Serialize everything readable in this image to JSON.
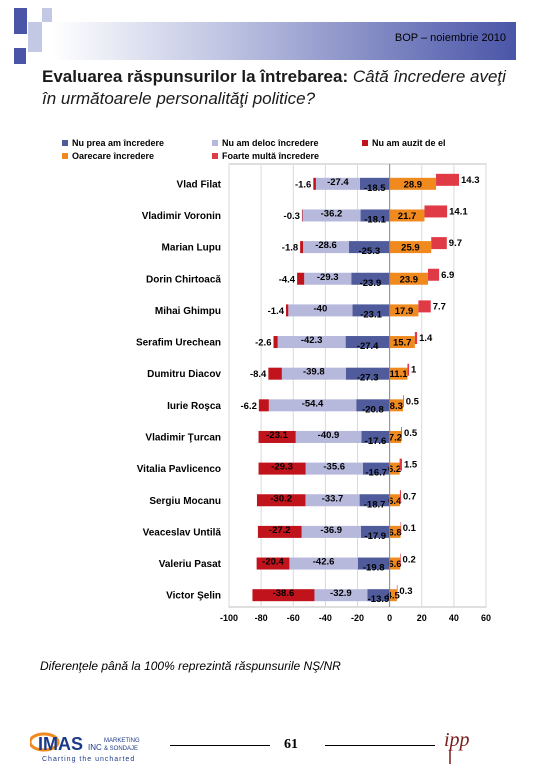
{
  "header": {
    "text": "BOP – noiembrie 2010"
  },
  "title": {
    "lead": "Evaluarea răspunsurilor la întrebarea:",
    "question": " Câtă încredere aveţi în următoarele personalităţi politice?"
  },
  "note": "Diferenţele până la 100% reprezintă răspunsurile NŞ/NR",
  "page_number": "61",
  "logos": {
    "imas_text": "IMAS",
    "imas_tagline": "Charting the uncharted",
    "imas_sub1": "INC",
    "imas_sub2": "MARKETING",
    "imas_sub3": "& SONDAJE",
    "ipp_text": "ipp"
  },
  "colors": {
    "nu_prea": "#4f5b9a",
    "nu_deloc": "#b7b9dc",
    "nu_auzit": "#c0131b",
    "oarecare": "#f08a1e",
    "foarte": "#e03a47",
    "header_dark": "#4a55a8"
  },
  "chart_data": {
    "type": "bar",
    "orientation": "horizontal-diverging",
    "categories": [
      "Vlad Filat",
      "Vladimir Voronin",
      "Marian Lupu",
      "Dorin Chirtoacă",
      "Mihai Ghimpu",
      "Serafim Urechean",
      "Dumitru Diacov",
      "Iurie Roşca",
      "Vladimir Ţurcan",
      "Vitalia Pavlicenco",
      "Sergiu Mocanu",
      "Veaceslav Untilă",
      "Valeriu Pasat",
      "Victor Şelin"
    ],
    "series": [
      {
        "name": "Nu am auzit de el",
        "values": [
          -1.6,
          -0.3,
          -1.8,
          -4.4,
          -1.4,
          -2.6,
          -8.4,
          -6.2,
          -23.1,
          -29.3,
          -30.2,
          -27.2,
          -20.4,
          -38.6
        ]
      },
      {
        "name": "Nu am deloc încredere",
        "values": [
          -27.4,
          -36.2,
          -28.6,
          -29.3,
          -40.0,
          -42.3,
          -39.8,
          -54.4,
          -40.9,
          -35.6,
          -33.7,
          -36.9,
          -42.6,
          -32.9
        ]
      },
      {
        "name": "Nu prea am încredere",
        "values": [
          -18.5,
          -18.1,
          -25.3,
          -23.9,
          -23.1,
          -27.4,
          -27.3,
          -20.8,
          -17.6,
          -16.7,
          -18.7,
          -17.9,
          -19.8,
          -13.9
        ]
      },
      {
        "name": "Oarecare încredere",
        "values": [
          28.9,
          21.7,
          25.9,
          23.9,
          17.9,
          15.7,
          11.1,
          8.3,
          7.2,
          6.2,
          6.4,
          6.8,
          6.6,
          4.5
        ]
      },
      {
        "name": "Foarte multă încredere",
        "values": [
          14.3,
          14.1,
          9.7,
          6.9,
          7.7,
          1.4,
          1.0,
          0.5,
          0.5,
          1.5,
          0.7,
          0.1,
          0.2,
          0.3
        ]
      }
    ],
    "legend": [
      "Nu prea am încredere",
      "Nu am deloc încredere",
      "Nu am auzit de el",
      "Oarecare încredere",
      "Foarte multă încredere"
    ],
    "x_ticks": [
      "-100",
      "-80",
      "-60",
      "-40",
      "-20",
      "0",
      "20",
      "40",
      "60"
    ],
    "xlim": [
      -100,
      60
    ],
    "grid": true,
    "legend_position": "top"
  }
}
